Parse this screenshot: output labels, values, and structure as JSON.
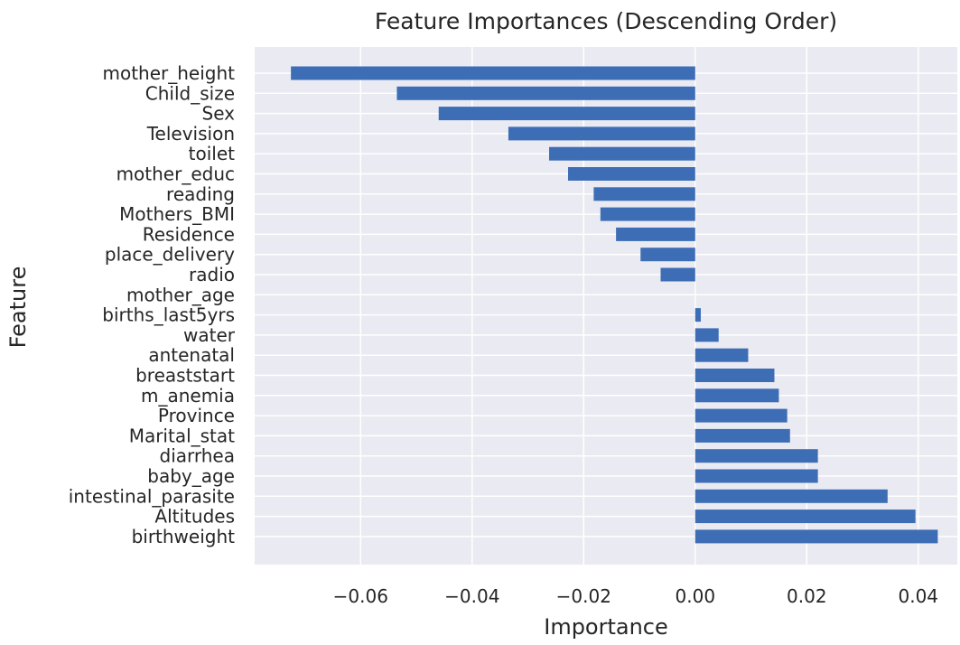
{
  "chart_data": {
    "type": "bar",
    "orientation": "horizontal",
    "title": "Feature Importances (Descending Order)",
    "xlabel": "Importance",
    "ylabel": "Feature",
    "xlim": [
      -0.079,
      0.047
    ],
    "xticks": [
      -0.06,
      -0.04,
      -0.02,
      0.0,
      0.02,
      0.04
    ],
    "xtick_labels": [
      "−0.06",
      "−0.04",
      "−0.02",
      "0.00",
      "0.02",
      "0.04"
    ],
    "grid": true,
    "colors": {
      "bar": "#3d6db5",
      "background": "#eaeaf2",
      "grid": "#ffffff",
      "text": "#262626"
    },
    "categories": [
      "mother_height",
      "Child_size",
      "Sex",
      "Television",
      "toilet",
      "mother_educ",
      "reading",
      "Mothers_BMI",
      "Residence",
      "place_delivery",
      "radio",
      "mother_age",
      "births_last5yrs",
      "water",
      "antenatal",
      "breaststart",
      "m_anemia",
      "Province",
      "Marital_stat",
      "diarrhea",
      "baby_age",
      "intestinal_parasite",
      "Altitudes",
      "birthweight"
    ],
    "values": [
      -0.0725,
      -0.0535,
      -0.046,
      -0.0335,
      -0.0262,
      -0.0228,
      -0.0182,
      -0.017,
      -0.0142,
      -0.0098,
      -0.0062,
      0.0,
      0.001,
      0.0042,
      0.0095,
      0.0142,
      0.015,
      0.0165,
      0.017,
      0.022,
      0.022,
      0.0345,
      0.0395,
      0.0435
    ]
  }
}
